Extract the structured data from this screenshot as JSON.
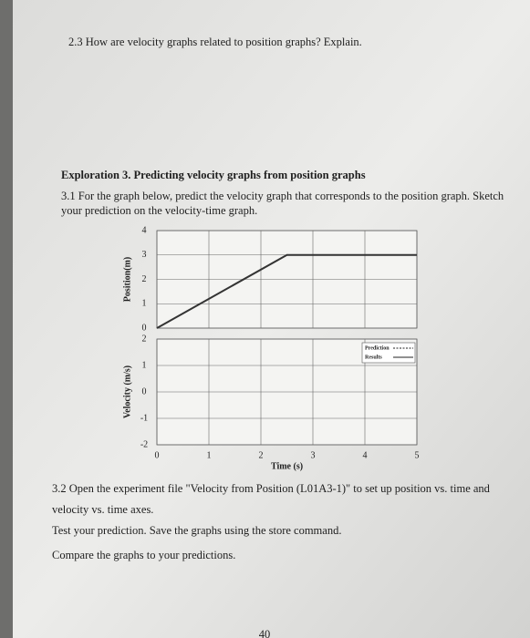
{
  "question_2_3": "2.3 How are velocity graphs related to position graphs? Explain.",
  "exploration_title": "Exploration 3. Predicting velocity graphs from position graphs",
  "question_3_1": [
    "3.1 For the graph below, predict the velocity graph that corresponds to the position graph. Sketch",
    "your prediction on the velocity-time graph."
  ],
  "chart_data": [
    {
      "type": "line",
      "ylabel": "Position(m)",
      "x": [
        0,
        2.5,
        5
      ],
      "values": [
        0,
        3,
        3
      ],
      "color": "#333333",
      "xlim": [
        0,
        5
      ],
      "ylim": [
        0,
        4
      ],
      "yticks": [
        0,
        1,
        2,
        3,
        4
      ],
      "grid": true
    },
    {
      "type": "line",
      "ylabel": "Velocity (m/s)",
      "xlabel": "Time (s)",
      "x": [],
      "series": [
        {
          "name": "Prediction",
          "values": []
        },
        {
          "name": "Results",
          "values": []
        }
      ],
      "xlim": [
        0,
        5
      ],
      "xticks": [
        0,
        1,
        2,
        3,
        4,
        5
      ],
      "ylim": [
        -2,
        2
      ],
      "yticks": [
        -2,
        -1,
        0,
        1,
        2
      ],
      "grid": true,
      "legend": "top-right"
    }
  ],
  "question_3_2": [
    "3.2 Open the experiment file \"Velocity from Position (L01A3-1)\" to set up position vs. time and",
    "velocity vs. time axes."
  ],
  "test_text": "Test your prediction. Save the graphs using the store command.",
  "compare_text": "Compare the graphs to your predictions.",
  "page_number": "40"
}
